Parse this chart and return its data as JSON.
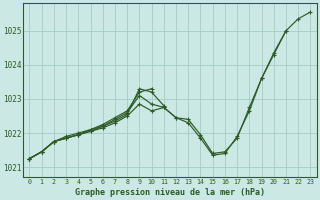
{
  "title": "Graphe pression niveau de la mer (hPa)",
  "bg_color": "#cce8e4",
  "grid_color": "#aacfcb",
  "line_color": "#2d5a27",
  "marker_color": "#2d5a27",
  "xlim": [
    -0.5,
    23.5
  ],
  "ylim": [
    1020.7,
    1025.8
  ],
  "yticks": [
    1021,
    1022,
    1023,
    1024,
    1025
  ],
  "xticks": [
    0,
    1,
    2,
    3,
    4,
    5,
    6,
    7,
    8,
    9,
    10,
    11,
    12,
    13,
    14,
    15,
    16,
    17,
    18,
    19,
    20,
    21,
    22,
    23
  ],
  "series": [
    {
      "x": [
        0,
        1,
        2,
        3,
        4,
        5,
        6,
        7,
        8,
        9,
        10,
        11,
        12,
        13,
        14,
        15,
        16,
        17,
        18,
        19,
        20,
        21,
        22,
        23
      ],
      "y": [
        1021.25,
        1021.45,
        1021.75,
        1021.85,
        1021.95,
        1022.05,
        1022.15,
        1022.3,
        1022.5,
        1022.85,
        1022.65,
        1022.75,
        1022.45,
        1022.3,
        1021.85,
        1021.35,
        1021.4,
        1021.9,
        1022.65,
        1023.6,
        1024.3,
        1025.0,
        1025.35,
        1025.55
      ]
    },
    {
      "x": [
        0,
        1,
        2,
        3,
        4,
        5,
        6,
        7,
        8,
        9,
        10,
        11,
        12,
        13,
        14,
        15,
        16,
        17,
        18,
        19,
        20,
        21
      ],
      "y": [
        1021.25,
        1021.45,
        1021.75,
        1021.9,
        1022.0,
        1022.1,
        1022.2,
        1022.4,
        1022.6,
        1023.1,
        1022.85,
        1022.75,
        1022.45,
        1022.4,
        1021.95,
        1021.4,
        1021.45,
        1021.85,
        1022.75,
        1023.6,
        1024.35,
        1025.0
      ]
    },
    {
      "x": [
        0,
        1,
        2,
        3,
        4,
        5,
        6,
        7,
        8,
        9,
        10,
        11
      ],
      "y": [
        1021.25,
        1021.45,
        1021.75,
        1021.85,
        1021.95,
        1022.05,
        1022.2,
        1022.35,
        1022.55,
        1023.3,
        1023.2,
        1022.8
      ]
    },
    {
      "x": [
        0,
        1,
        2,
        3,
        4,
        5,
        6,
        7,
        8,
        9,
        10
      ],
      "y": [
        1021.25,
        1021.45,
        1021.75,
        1021.85,
        1021.95,
        1022.1,
        1022.25,
        1022.45,
        1022.65,
        1023.2,
        1023.3
      ]
    }
  ]
}
